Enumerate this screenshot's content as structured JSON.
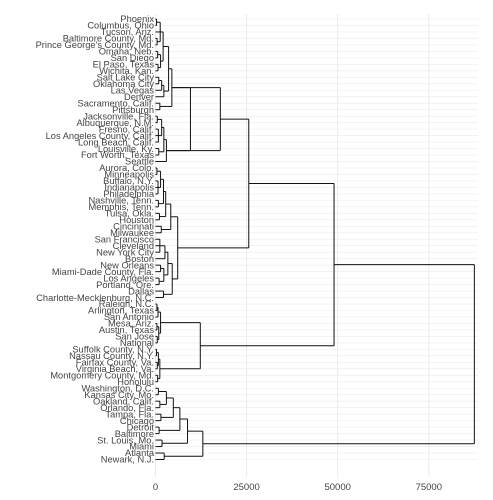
{
  "chart_data": {
    "type": "dendrogram",
    "orientation": "horizontal",
    "title": "",
    "xlabel": "",
    "ylabel": "",
    "xlim": [
      -1500,
      88500
    ],
    "x_ticks": [
      0,
      25000,
      50000,
      75000
    ],
    "x_tick_labels": [
      "0",
      "25000",
      "50000",
      "75000"
    ],
    "grid": true,
    "colors": {
      "branch": "#111111",
      "label": "#444444",
      "grid": "#ebebeb"
    },
    "leaves": [
      "Phoenix",
      "Columbus, Ohio",
      "Tucson, Ariz.",
      "Baltimore County, Md.",
      "Prince George's County, Md.",
      "Omaha, Neb.",
      "San Diego",
      "El Paso, Texas",
      "Wichita, Kan.",
      "Salt Lake City",
      "Oklahoma City",
      "Las Vegas",
      "Denver",
      "Sacramento, Calif.",
      "Pittsburgh",
      "Jacksonville, Fla.",
      "Albuquerque, N.M.",
      "Fresno, Calif.",
      "Los Angeles County, Calif.",
      "Long Beach, Calif.",
      "Louisville, Ky.",
      "Fort Worth, Texas",
      "Seattle",
      "Aurora, Colo.",
      "Minneapolis",
      "Buffalo, N.Y.",
      "Indianapolis",
      "Philadelphia",
      "Nashville, Tenn.",
      "Memphis, Tenn.",
      "Tulsa, Okla.",
      "Houston",
      "Cincinnati",
      "Milwaukee",
      "San Francisco",
      "Cleveland",
      "New York City",
      "Boston",
      "New Orleans",
      "Miami-Dade County, Fla.",
      "Los Angeles",
      "Portland, Ore.",
      "Dallas",
      "Charlotte-Mecklenburg, N.C.",
      "Raleigh, N.C.",
      "Arlington, Texas",
      "San Antonio",
      "Mesa, Ariz.",
      "Austin, Texas",
      "San Jose",
      "National",
      "Suffolk County, N.Y.",
      "Nassau County, N.Y.",
      "Fairfax County, Va.",
      "Virginia Beach, Va.",
      "Montgomery County, Md.",
      "Honolulu",
      "Washington, D.C.",
      "Kansas City, Mo.",
      "Oakland, Calif.",
      "Orlando, Fla.",
      "Tampa, Fla.",
      "Chicago",
      "Detroit",
      "Baltimore",
      "St. Louis, Mo.",
      "Miami",
      "Atlanta",
      "Newark, N.J."
    ],
    "merges": [
      [
        [
          0,
          1
        ],
        300
      ],
      [
        [
          3,
          4
        ],
        450
      ],
      [
        [
          2,
          2
        ],
        800
      ],
      [
        [
          0,
          4
        ],
        1300
      ],
      [
        [
          5,
          6
        ],
        600
      ],
      [
        [
          7,
          8
        ],
        700
      ],
      [
        [
          5,
          8
        ],
        1400
      ],
      [
        [
          0,
          8
        ],
        2100
      ],
      [
        [
          9,
          10
        ],
        900
      ],
      [
        [
          9,
          11
        ],
        1700
      ],
      [
        [
          9,
          12
        ],
        2300
      ],
      [
        [
          0,
          12
        ],
        3600
      ],
      [
        [
          13,
          14
        ],
        1200
      ],
      [
        [
          0,
          14
        ],
        4500
      ],
      [
        [
          15,
          16
        ],
        500
      ],
      [
        [
          17,
          19
        ],
        800
      ],
      [
        [
          15,
          19
        ],
        1700
      ],
      [
        [
          20,
          21
        ],
        900
      ],
      [
        [
          15,
          21
        ],
        2300
      ],
      [
        [
          15,
          22
        ],
        3000
      ],
      [
        [
          0,
          22
        ],
        9600
      ],
      [
        [
          0,
          22
        ],
        17800
      ],
      [
        [
          23,
          24
        ],
        400
      ],
      [
        [
          25,
          27
        ],
        700
      ],
      [
        [
          23,
          27
        ],
        1400
      ],
      [
        [
          28,
          29
        ],
        800
      ],
      [
        [
          23,
          29
        ],
        2200
      ],
      [
        [
          30,
          31
        ],
        1100
      ],
      [
        [
          23,
          31
        ],
        2800
      ],
      [
        [
          32,
          33
        ],
        1600
      ],
      [
        [
          23,
          33
        ],
        4200
      ],
      [
        [
          34,
          36
        ],
        1200
      ],
      [
        [
          37,
          37
        ],
        1700
      ],
      [
        [
          34,
          37
        ],
        2600
      ],
      [
        [
          38,
          39
        ],
        1400
      ],
      [
        [
          40,
          41
        ],
        1000
      ],
      [
        [
          38,
          41
        ],
        2300
      ],
      [
        [
          34,
          41
        ],
        3400
      ],
      [
        [
          42,
          43
        ],
        2200
      ],
      [
        [
          34,
          43
        ],
        4600
      ],
      [
        [
          23,
          43
        ],
        6100
      ],
      [
        [
          0,
          43
        ],
        25600
      ],
      [
        [
          44,
          45
        ],
        400
      ],
      [
        [
          44,
          46
        ],
        700
      ],
      [
        [
          47,
          48
        ],
        400
      ],
      [
        [
          49,
          50
        ],
        500
      ],
      [
        [
          47,
          50
        ],
        900
      ],
      [
        [
          44,
          50
        ],
        1400
      ],
      [
        [
          51,
          52
        ],
        300
      ],
      [
        [
          53,
          54
        ],
        500
      ],
      [
        [
          51,
          54
        ],
        800
      ],
      [
        [
          55,
          56
        ],
        600
      ],
      [
        [
          51,
          56
        ],
        1200
      ],
      [
        [
          44,
          56
        ],
        12300
      ],
      [
        [
          0,
          56
        ],
        49000
      ],
      [
        [
          57,
          58
        ],
        800
      ],
      [
        [
          59,
          60
        ],
        1200
      ],
      [
        [
          57,
          60
        ],
        3000
      ],
      [
        [
          61,
          62
        ],
        1500
      ],
      [
        [
          57,
          62
        ],
        4900
      ],
      [
        [
          63,
          64
        ],
        1000
      ],
      [
        [
          57,
          64
        ],
        6700
      ],
      [
        [
          65,
          66
        ],
        1800
      ],
      [
        [
          57,
          66
        ],
        8800
      ],
      [
        [
          67,
          68
        ],
        2400
      ],
      [
        [
          57,
          68
        ],
        13000
      ],
      [
        [
          0,
          68
        ],
        87500
      ]
    ]
  }
}
